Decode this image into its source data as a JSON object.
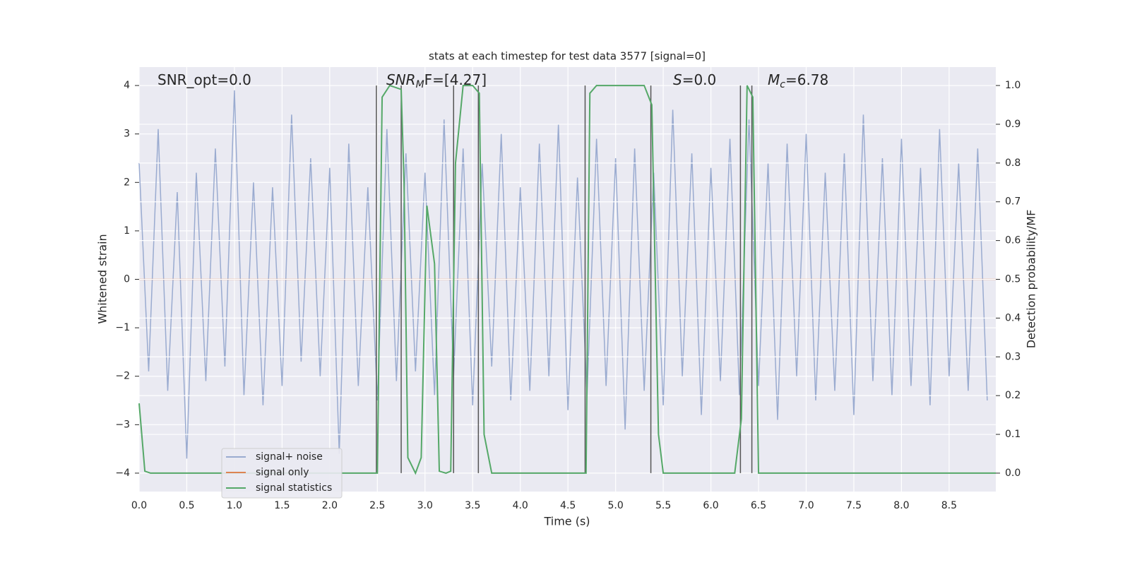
{
  "chart_data": {
    "type": "line",
    "title": "stats at each timestep for test data 3577 [signal=0]",
    "x_label": "Time (s)",
    "y_label": "Whitened strain",
    "y2_label": "Detection probability/MF",
    "xlim": [
      0,
      8.99
    ],
    "ylim": [
      -4.38,
      4.38
    ],
    "y2lim": [
      -0.0475,
      1.0475
    ],
    "xticks": [
      {
        "value": 0,
        "label": "0.0"
      },
      {
        "value": 0.5,
        "label": "0.5"
      },
      {
        "value": 1,
        "label": "1.0"
      },
      {
        "value": 1.5,
        "label": "1.5"
      },
      {
        "value": 2,
        "label": "2.0"
      },
      {
        "value": 2.5,
        "label": "2.5"
      },
      {
        "value": 3,
        "label": "3.0"
      },
      {
        "value": 3.5,
        "label": "3.5"
      },
      {
        "value": 4,
        "label": "4.0"
      },
      {
        "value": 4.5,
        "label": "4.5"
      },
      {
        "value": 5,
        "label": "5.0"
      },
      {
        "value": 5.5,
        "label": "5.5"
      },
      {
        "value": 6,
        "label": "6.0"
      },
      {
        "value": 6.5,
        "label": "6.5"
      },
      {
        "value": 7,
        "label": "7.0"
      },
      {
        "value": 7.5,
        "label": "7.5"
      },
      {
        "value": 8,
        "label": "8.0"
      },
      {
        "value": 8.5,
        "label": "8.5"
      }
    ],
    "yticks": [
      {
        "value": -4,
        "label": "−4"
      },
      {
        "value": -3,
        "label": "−3"
      },
      {
        "value": -2,
        "label": "−2"
      },
      {
        "value": -1,
        "label": "−1"
      },
      0,
      1,
      2,
      3,
      4
    ],
    "y2ticks": [
      {
        "value": 0,
        "label": "0.0"
      },
      {
        "value": 0.1,
        "label": "0.1"
      },
      {
        "value": 0.2,
        "label": "0.2"
      },
      {
        "value": 0.3,
        "label": "0.3"
      },
      {
        "value": 0.4,
        "label": "0.4"
      },
      {
        "value": 0.5,
        "label": "0.5"
      },
      {
        "value": 0.6,
        "label": "0.6"
      },
      {
        "value": 0.7,
        "label": "0.7"
      },
      {
        "value": 0.8,
        "label": "0.8"
      },
      {
        "value": 0.9,
        "label": "0.9"
      },
      {
        "value": 1,
        "label": "1.0"
      }
    ],
    "grid": true,
    "legend": "lower left",
    "annotations": [
      {
        "text": "SNR_opt=0.0"
      },
      {
        "base": "SNR",
        "sub": "M",
        "tail": "F=[4.27]"
      },
      {
        "base": "S",
        "tail": "=0.0"
      },
      {
        "base": "M",
        "sub": "c",
        "tail": "=6.78"
      }
    ],
    "vlines": {
      "color": "#555555",
      "x": [
        2.49,
        2.75,
        3.3,
        3.56,
        4.68,
        5.37,
        6.31,
        6.43
      ]
    },
    "series": [
      {
        "name": "signal+ noise",
        "color": "#9aabd0",
        "x": [
          0,
          0.1,
          0.2,
          0.3,
          0.4,
          0.5,
          0.6,
          0.7,
          0.8,
          0.9,
          1,
          1.1,
          1.2,
          1.3,
          1.4,
          1.5,
          1.6,
          1.7,
          1.8,
          1.9,
          2,
          2.1,
          2.2,
          2.3,
          2.4,
          2.5,
          2.6,
          2.7,
          2.8,
          2.9,
          3,
          3.1,
          3.2,
          3.3,
          3.4,
          3.5,
          3.6,
          3.7,
          3.8,
          3.9,
          4,
          4.1,
          4.2,
          4.3,
          4.4,
          4.5,
          4.6,
          4.7,
          4.8,
          4.9,
          5,
          5.1,
          5.2,
          5.3,
          5.4,
          5.5,
          5.6,
          5.7,
          5.8,
          5.9,
          6,
          6.1,
          6.2,
          6.3,
          6.4,
          6.5,
          6.6,
          6.7,
          6.8,
          6.9,
          7,
          7.1,
          7.2,
          7.3,
          7.4,
          7.5,
          7.6,
          7.7,
          7.8,
          7.9,
          8,
          8.1,
          8.2,
          8.3,
          8.4,
          8.5,
          8.6,
          8.7,
          8.8,
          8.9
        ],
        "values": [
          2.4,
          -1.9,
          3.1,
          -2.3,
          1.8,
          -3.7,
          2.2,
          -2.1,
          2.7,
          -1.8,
          3.9,
          -2.4,
          2.0,
          -2.6,
          1.9,
          -2.2,
          3.4,
          -1.7,
          2.5,
          -2.0,
          2.3,
          -3.6,
          2.8,
          -2.2,
          1.9,
          -2.5,
          3.1,
          -2.1,
          2.6,
          -1.9,
          2.2,
          -2.4,
          3.3,
          -2.0,
          2.7,
          -2.6,
          2.4,
          -1.8,
          3.0,
          -2.5,
          1.9,
          -2.3,
          2.8,
          -2.0,
          3.2,
          -2.7,
          2.1,
          -2.4,
          2.9,
          -2.2,
          2.5,
          -3.1,
          2.7,
          -2.3,
          2.2,
          -2.6,
          3.5,
          -2.0,
          2.6,
          -2.8,
          2.3,
          -2.1,
          2.9,
          -2.4,
          3.3,
          -2.2,
          2.4,
          -2.9,
          2.8,
          -2.0,
          3.0,
          -2.5,
          2.2,
          -2.3,
          2.6,
          -2.8,
          3.4,
          -2.1,
          2.5,
          -2.4,
          2.9,
          -2.2,
          2.3,
          -2.6,
          3.1,
          -2.0,
          2.4,
          -2.3,
          2.7,
          -2.5
        ]
      },
      {
        "name": "signal only",
        "color": "#dd8452",
        "x": [
          0,
          8.99
        ],
        "values": [
          0,
          0
        ]
      },
      {
        "name": "signal statistics",
        "color": "#55a868",
        "axis": "y2",
        "x": [
          0,
          0.06,
          0.12,
          2.5,
          2.55,
          2.63,
          2.75,
          2.78,
          2.82,
          2.9,
          2.96,
          3.02,
          3.1,
          3.15,
          3.22,
          3.27,
          3.32,
          3.4,
          3.5,
          3.57,
          3.62,
          3.7,
          4.69,
          4.73,
          4.8,
          5.3,
          5.38,
          5.45,
          5.5,
          6.25,
          6.32,
          6.38,
          6.44,
          6.5,
          8.99
        ],
        "values": [
          0.18,
          0.005,
          0,
          0,
          0.97,
          1,
          0.99,
          0.75,
          0.04,
          0,
          0.04,
          0.69,
          0.54,
          0.005,
          0,
          0.005,
          0.8,
          1,
          1,
          0.98,
          0.1,
          0,
          0,
          0.98,
          1,
          1,
          0.95,
          0.1,
          0,
          0,
          0.14,
          1,
          0.97,
          0,
          0
        ]
      }
    ]
  }
}
